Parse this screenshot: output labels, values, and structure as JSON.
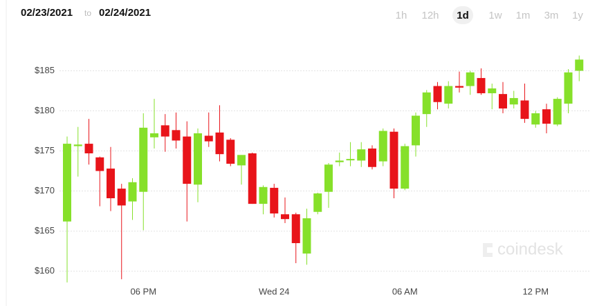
{
  "header": {
    "from": "02/23/2021",
    "separator": "to",
    "to": "02/24/2021",
    "timeframes": [
      "1h",
      "12h",
      "1d",
      "1w",
      "1m",
      "3m",
      "1y"
    ],
    "selected_timeframe": 2
  },
  "watermark": "coindesk",
  "chart_data": {
    "type": "candlestick",
    "categories": [
      null,
      null,
      null,
      null,
      null,
      null,
      null,
      "06 PM",
      null,
      null,
      null,
      null,
      null,
      null,
      null,
      null,
      null,
      null,
      null,
      "Wed 24",
      null,
      null,
      null,
      null,
      null,
      null,
      null,
      null,
      null,
      null,
      null,
      "06 AM",
      null,
      null,
      null,
      null,
      null,
      null,
      null,
      null,
      null,
      null,
      null,
      "12 PM",
      null,
      null,
      null,
      null
    ],
    "open": [
      166.2,
      175.6,
      175.9,
      174.2,
      172.8,
      170.3,
      168.7,
      169.9,
      176.7,
      178.2,
      177.6,
      176.8,
      170.8,
      176.9,
      177.3,
      176.4,
      173.2,
      174.7,
      168.4,
      170.4,
      167.1,
      167.1,
      162.2,
      167.4,
      169.9,
      173.6,
      173.9,
      173.8,
      175.3,
      173.7,
      177.4,
      170.3,
      175.7,
      179.6,
      183.1,
      180.9,
      183.1,
      183.1,
      184.1,
      182.2,
      182.1,
      180.8,
      181.3,
      178.3,
      180.2,
      178.3,
      180.9,
      185.0
    ],
    "high": [
      176.8,
      178.0,
      179.0,
      174.3,
      175.5,
      170.9,
      171.6,
      179.7,
      181.5,
      179.6,
      179.8,
      178.7,
      177.8,
      179.8,
      180.7,
      176.6,
      174.5,
      174.8,
      170.7,
      170.9,
      169.2,
      167.3,
      167.8,
      169.8,
      173.5,
      174.8,
      176.1,
      176.1,
      175.7,
      177.8,
      177.8,
      175.9,
      179.8,
      182.6,
      183.6,
      183.7,
      184.9,
      185.0,
      185.3,
      183.4,
      183.6,
      182.5,
      183.4,
      180.0,
      180.9,
      181.7,
      185.2,
      186.9
    ],
    "low": [
      158.6,
      171.8,
      173.3,
      168.1,
      167.5,
      159.0,
      166.4,
      165.1,
      175.3,
      174.9,
      175.3,
      166.2,
      168.6,
      175.5,
      173.7,
      173.1,
      170.8,
      168.4,
      167.1,
      166.7,
      166.0,
      161.0,
      160.8,
      167.1,
      167.9,
      173.1,
      173.1,
      173.0,
      172.7,
      173.1,
      169.1,
      170.1,
      174.3,
      178.0,
      180.2,
      180.3,
      182.3,
      182.0,
      182.0,
      180.2,
      179.7,
      180.3,
      178.5,
      177.9,
      177.2,
      178.1,
      179.7,
      183.7
    ],
    "close": [
      175.9,
      175.8,
      174.7,
      172.5,
      169.1,
      168.2,
      171.1,
      177.9,
      177.2,
      176.8,
      176.3,
      170.9,
      177.2,
      176.2,
      174.6,
      173.4,
      174.5,
      168.4,
      170.5,
      167.2,
      166.5,
      163.5,
      166.6,
      169.7,
      173.3,
      173.8,
      174.0,
      175.2,
      173.0,
      177.5,
      170.3,
      175.6,
      179.4,
      182.3,
      181.1,
      183.1,
      182.9,
      184.8,
      182.2,
      182.8,
      180.3,
      181.6,
      179.0,
      179.7,
      178.4,
      181.5,
      184.8,
      186.4
    ],
    "up_color": "#86e02a",
    "down_color": "#e8141a",
    "ylim": [
      158.5,
      187.8
    ],
    "yticks": [
      {
        "value": 160,
        "label": "$160"
      },
      {
        "value": 165,
        "label": "$165"
      },
      {
        "value": 170,
        "label": "$170"
      },
      {
        "value": 175,
        "label": "$175"
      },
      {
        "value": 180,
        "label": "$180"
      },
      {
        "value": 185,
        "label": "$185"
      }
    ],
    "grid": true
  }
}
